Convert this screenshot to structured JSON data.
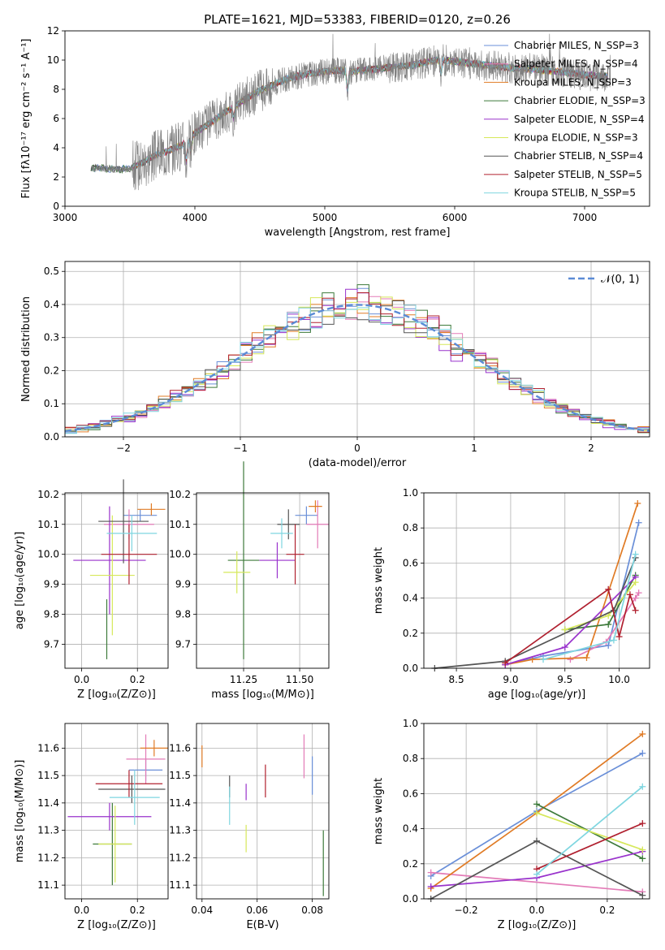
{
  "chart_data": [
    {
      "type": "line",
      "title": "PLATE=1621, MJD=53383, FIBERID=0120, z=0.26",
      "xlabel": "wavelength [Angstrom, rest frame]",
      "ylabel": "Flux [fλ10⁻¹⁷ erg cm⁻² s⁻¹ A⁻¹]",
      "xlim": [
        3000,
        7500
      ],
      "ylim": [
        0,
        12
      ],
      "xticks": [
        "3000",
        "4000",
        "5000",
        "6000",
        "7000"
      ],
      "yticks": [
        "0",
        "2",
        "4",
        "6",
        "8",
        "10",
        "12"
      ],
      "grid": false,
      "legend_position": "upper-right",
      "spectrum": {
        "color": "#808080",
        "wavelength": [
          3200,
          3300,
          3400,
          3500,
          3600,
          3700,
          3800,
          3900,
          4000,
          4100,
          4200,
          4300,
          4400,
          4500,
          4600,
          4700,
          4800,
          4900,
          5000,
          5100,
          5200,
          5300,
          5400,
          5500,
          5600,
          5700,
          5800,
          5900,
          6000,
          6100,
          6200,
          6300,
          6400,
          6500,
          6600,
          6700,
          6800,
          6900,
          7000,
          7100,
          7200
        ],
        "flux": [
          2.6,
          2.6,
          2.5,
          2.6,
          3.0,
          3.5,
          3.8,
          4.2,
          5.0,
          5.6,
          6.2,
          6.8,
          7.4,
          7.9,
          8.3,
          8.7,
          8.9,
          9.1,
          9.2,
          9.3,
          9.2,
          9.3,
          9.4,
          9.5,
          9.6,
          9.7,
          9.9,
          10.0,
          9.9,
          9.8,
          9.7,
          9.6,
          9.5,
          9.4,
          9.4,
          9.3,
          9.2,
          9.1,
          9.0,
          8.9,
          8.9
        ]
      },
      "series": [
        {
          "name": "Chabrier MILES, N_SSP=3",
          "color": "#6a8fd8"
        },
        {
          "name": "Salpeter MILES, N_SSP=4",
          "color": "#e37bb7"
        },
        {
          "name": "Kroupa MILES, N_SSP=3",
          "color": "#e07b25"
        },
        {
          "name": "Chabrier ELODIE, N_SSP=3",
          "color": "#3d7a3a"
        },
        {
          "name": "Salpeter ELODIE, N_SSP=4",
          "color": "#9932cc"
        },
        {
          "name": "Kroupa ELODIE, N_SSP=3",
          "color": "#d6e85a"
        },
        {
          "name": "Chabrier STELIB, N_SSP=4",
          "color": "#555555"
        },
        {
          "name": "Salpeter STELIB, N_SSP=5",
          "color": "#b0202f"
        },
        {
          "name": "Kroupa STELIB, N_SSP=5",
          "color": "#7fd6e0"
        }
      ]
    },
    {
      "type": "line",
      "xlabel": "(data-model)/error",
      "ylabel": "Normed distribution",
      "xlim": [
        -2.5,
        2.5
      ],
      "ylim": [
        0,
        0.53
      ],
      "xticks": [
        "−2",
        "−1",
        "0",
        "1",
        "2"
      ],
      "yticks": [
        "0.0",
        "0.1",
        "0.2",
        "0.3",
        "0.4",
        "0.5"
      ],
      "grid": true,
      "legend_position": "upper-right",
      "legend": "𝒩(0, 1)",
      "gaussian_color": "#5b8bd6",
      "bin_width": 0.1,
      "hist_series": [
        {
          "color": "#6a8fd8",
          "offset": 0.008
        },
        {
          "color": "#e37bb7",
          "offset": -0.006
        },
        {
          "color": "#e07b25",
          "offset": 0.012
        },
        {
          "color": "#3d7a3a",
          "offset": -0.01
        },
        {
          "color": "#9932cc",
          "offset": 0.015
        },
        {
          "color": "#d6e85a",
          "offset": -0.004
        },
        {
          "color": "#555555",
          "offset": 0.005
        },
        {
          "color": "#b0202f",
          "offset": -0.012
        },
        {
          "color": "#7fd6e0",
          "offset": 0.01
        }
      ]
    },
    {
      "type": "scatter",
      "xlabel": "Z [log₁₀(Z/Z⊙)]",
      "ylabel": "age  [log₁₀(age/yr)]",
      "xlim": [
        -0.06,
        0.31
      ],
      "ylim": [
        9.62,
        10.205
      ],
      "xticks": [
        "0.0",
        "0.2"
      ],
      "yticks": [
        "9.7",
        "9.8",
        "9.9",
        "10.0",
        "10.1",
        "10.2"
      ],
      "grid": true,
      "points": [
        {
          "color": "#6a8fd8",
          "x": 0.21,
          "y": 10.13,
          "xerr": 0.06,
          "yerr": 0.02
        },
        {
          "color": "#e37bb7",
          "x": 0.17,
          "y": 10.1,
          "xerr": 0.09,
          "yerr": 0.05
        },
        {
          "color": "#e07b25",
          "x": 0.25,
          "y": 10.15,
          "xerr": 0.05,
          "yerr": 0.02
        },
        {
          "color": "#3d7a3a",
          "x": 0.09,
          "y": 9.75,
          "xerr": 0.0,
          "yerr": 0.1
        },
        {
          "color": "#9932cc",
          "x": 0.1,
          "y": 9.98,
          "xerr": 0.13,
          "yerr": 0.18
        },
        {
          "color": "#d6e85a",
          "x": 0.11,
          "y": 9.93,
          "xerr": 0.08,
          "yerr": 0.2
        },
        {
          "color": "#555555",
          "x": 0.15,
          "y": 10.11,
          "xerr": 0.09,
          "yerr": 0.14
        },
        {
          "color": "#b0202f",
          "x": 0.17,
          "y": 10.0,
          "xerr": 0.1,
          "yerr": 0.1
        },
        {
          "color": "#7fd6e0",
          "x": 0.18,
          "y": 10.07,
          "xerr": 0.09,
          "yerr": 0.06
        }
      ]
    },
    {
      "type": "scatter",
      "xlabel": "mass [log₁₀(M/M⊙)]",
      "xlim": [
        11.04,
        11.63
      ],
      "ylim": [
        9.62,
        10.205
      ],
      "xticks": [
        "11.25",
        "11.50"
      ],
      "yticks": [
        "9.7",
        "9.8",
        "9.9",
        "10.0",
        "10.1",
        "10.2"
      ],
      "grid": true,
      "points": [
        {
          "color": "#6a8fd8",
          "x": 11.53,
          "y": 10.13,
          "xerr": 0.05,
          "yerr": 0.03
        },
        {
          "color": "#e37bb7",
          "x": 11.58,
          "y": 10.1,
          "xerr": 0.05,
          "yerr": 0.08
        },
        {
          "color": "#e07b25",
          "x": 11.57,
          "y": 10.16,
          "xerr": 0.03,
          "yerr": 0.02
        },
        {
          "color": "#3d7a3a",
          "x": 11.25,
          "y": 9.98,
          "xerr": 0.07,
          "yerr": 0.33
        },
        {
          "color": "#9932cc",
          "x": 11.4,
          "y": 9.98,
          "xerr": 0.08,
          "yerr": 0.06
        },
        {
          "color": "#d6e85a",
          "x": 11.22,
          "y": 9.94,
          "xerr": 0.06,
          "yerr": 0.07
        },
        {
          "color": "#555555",
          "x": 11.45,
          "y": 10.1,
          "xerr": 0.05,
          "yerr": 0.05
        },
        {
          "color": "#b0202f",
          "x": 11.48,
          "y": 10.0,
          "xerr": 0.04,
          "yerr": 0.1
        },
        {
          "color": "#7fd6e0",
          "x": 11.42,
          "y": 10.07,
          "xerr": 0.05,
          "yerr": 0.05
        }
      ]
    },
    {
      "type": "line",
      "xlabel": "age  [log₁₀(age/yr)]",
      "ylabel": "mass weight",
      "xlim": [
        8.2,
        10.28
      ],
      "ylim": [
        0,
        1.0
      ],
      "xticks": [
        "8.5",
        "9.0",
        "9.5",
        "10.0"
      ],
      "yticks": [
        "0.0",
        "0.2",
        "0.4",
        "0.6",
        "0.8",
        "1.0"
      ],
      "grid": true,
      "series": [
        {
          "color": "#6a8fd8",
          "x": [
            8.95,
            9.3,
            9.9,
            10.18
          ],
          "y": [
            0.02,
            0.07,
            0.13,
            0.83
          ]
        },
        {
          "color": "#e37bb7",
          "x": [
            9.55,
            9.88,
            10.15,
            10.18
          ],
          "y": [
            0.05,
            0.15,
            0.4,
            0.43
          ]
        },
        {
          "color": "#e07b25",
          "x": [
            8.95,
            9.2,
            9.7,
            10.17
          ],
          "y": [
            0.02,
            0.05,
            0.06,
            0.94
          ]
        },
        {
          "color": "#3d7a3a",
          "x": [
            9.5,
            9.9,
            10.15
          ],
          "y": [
            0.22,
            0.25,
            0.53
          ]
        },
        {
          "color": "#9932cc",
          "x": [
            8.95,
            9.5,
            10.15
          ],
          "y": [
            0.02,
            0.12,
            0.52
          ]
        },
        {
          "color": "#d6e85a",
          "x": [
            9.5,
            9.9,
            10.15
          ],
          "y": [
            0.22,
            0.3,
            0.49
          ]
        },
        {
          "color": "#555555",
          "x": [
            8.3,
            8.95,
            9.95,
            10.15
          ],
          "y": [
            0.0,
            0.04,
            0.33,
            0.63
          ]
        },
        {
          "color": "#b0202f",
          "x": [
            8.95,
            9.9,
            10.0,
            10.1,
            10.15
          ],
          "y": [
            0.03,
            0.45,
            0.18,
            0.42,
            0.33
          ]
        },
        {
          "color": "#7fd6e0",
          "x": [
            9.3,
            9.95,
            10.15
          ],
          "y": [
            0.05,
            0.16,
            0.65
          ]
        }
      ]
    },
    {
      "type": "scatter",
      "xlabel": "Z [log₁₀(Z/Z⊙)]",
      "ylabel": "mass [log₁₀(M/M⊙)]",
      "xlim": [
        -0.06,
        0.31
      ],
      "ylim": [
        11.05,
        11.69
      ],
      "xticks": [
        "0.0",
        "0.2"
      ],
      "yticks": [
        "11.1",
        "11.2",
        "11.3",
        "11.4",
        "11.5",
        "11.6"
      ],
      "grid": true,
      "points": [
        {
          "color": "#6a8fd8",
          "x": 0.23,
          "y": 11.52,
          "xerr": 0.06,
          "yerr": 0.04
        },
        {
          "color": "#e37bb7",
          "x": 0.23,
          "y": 11.56,
          "xerr": 0.07,
          "yerr": 0.09
        },
        {
          "color": "#e07b25",
          "x": 0.26,
          "y": 11.6,
          "xerr": 0.05,
          "yerr": 0.03
        },
        {
          "color": "#3d7a3a",
          "x": 0.11,
          "y": 11.25,
          "xerr": 0.07,
          "yerr": 0.15
        },
        {
          "color": "#9932cc",
          "x": 0.1,
          "y": 11.35,
          "xerr": 0.15,
          "yerr": 0.05
        },
        {
          "color": "#d6e85a",
          "x": 0.12,
          "y": 11.25,
          "xerr": 0.06,
          "yerr": 0.14
        },
        {
          "color": "#555555",
          "x": 0.18,
          "y": 11.45,
          "xerr": 0.12,
          "yerr": 0.05
        },
        {
          "color": "#b0202f",
          "x": 0.17,
          "y": 11.47,
          "xerr": 0.12,
          "yerr": 0.05
        },
        {
          "color": "#7fd6e0",
          "x": 0.19,
          "y": 11.42,
          "xerr": 0.09,
          "yerr": 0.1
        }
      ]
    },
    {
      "type": "scatter",
      "xlabel": "E(B-V)",
      "xlim": [
        0.038,
        0.086
      ],
      "ylim": [
        11.05,
        11.69
      ],
      "xticks": [
        "0.04",
        "0.06",
        "0.08"
      ],
      "yticks": [
        "11.1",
        "11.2",
        "11.3",
        "11.4",
        "11.5",
        "11.6"
      ],
      "grid": true,
      "points": [
        {
          "color": "#e07b25",
          "x": 0.04,
          "y": 11.57,
          "yerr": 0.04
        },
        {
          "color": "#555555",
          "x": 0.05,
          "y": 11.46,
          "yerr": 0.04
        },
        {
          "color": "#7fd6e0",
          "x": 0.05,
          "y": 11.39,
          "yerr": 0.07
        },
        {
          "color": "#9932cc",
          "x": 0.056,
          "y": 11.44,
          "yerr": 0.03
        },
        {
          "color": "#d6e85a",
          "x": 0.056,
          "y": 11.27,
          "yerr": 0.05
        },
        {
          "color": "#b0202f",
          "x": 0.063,
          "y": 11.48,
          "yerr": 0.06
        },
        {
          "color": "#e37bb7",
          "x": 0.077,
          "y": 11.57,
          "yerr": 0.08
        },
        {
          "color": "#6a8fd8",
          "x": 0.08,
          "y": 11.5,
          "yerr": 0.07
        },
        {
          "color": "#3d7a3a",
          "x": 0.084,
          "y": 11.18,
          "yerr": 0.12
        }
      ]
    },
    {
      "type": "line",
      "xlabel": "Z [log₁₀(Z/Z⊙)]",
      "ylabel": "mass weight",
      "xlim": [
        -0.32,
        0.32
      ],
      "ylim": [
        0,
        1.0
      ],
      "xticks": [
        "−0.2",
        "0.0",
        "0.2"
      ],
      "yticks": [
        "0.0",
        "0.2",
        "0.4",
        "0.6",
        "0.8",
        "1.0"
      ],
      "grid": true,
      "series": [
        {
          "color": "#6a8fd8",
          "x": [
            -0.3,
            0.0,
            0.3
          ],
          "y": [
            0.13,
            0.5,
            0.83
          ]
        },
        {
          "color": "#e37bb7",
          "x": [
            -0.3,
            0.3
          ],
          "y": [
            0.15,
            0.04
          ]
        },
        {
          "color": "#e07b25",
          "x": [
            -0.3,
            0.0,
            0.3
          ],
          "y": [
            0.06,
            0.49,
            0.94
          ]
        },
        {
          "color": "#3d7a3a",
          "x": [
            0.0,
            0.3
          ],
          "y": [
            0.54,
            0.23
          ]
        },
        {
          "color": "#9932cc",
          "x": [
            -0.3,
            0.0,
            0.3
          ],
          "y": [
            0.07,
            0.12,
            0.27
          ]
        },
        {
          "color": "#d6e85a",
          "x": [
            0.0,
            0.3
          ],
          "y": [
            0.49,
            0.28
          ]
        },
        {
          "color": "#555555",
          "x": [
            -0.3,
            0.0,
            0.3
          ],
          "y": [
            0.0,
            0.33,
            0.02
          ]
        },
        {
          "color": "#b0202f",
          "x": [
            0.0,
            0.3
          ],
          "y": [
            0.17,
            0.43
          ]
        },
        {
          "color": "#7fd6e0",
          "x": [
            0.0,
            0.3
          ],
          "y": [
            0.14,
            0.64
          ]
        }
      ]
    }
  ]
}
